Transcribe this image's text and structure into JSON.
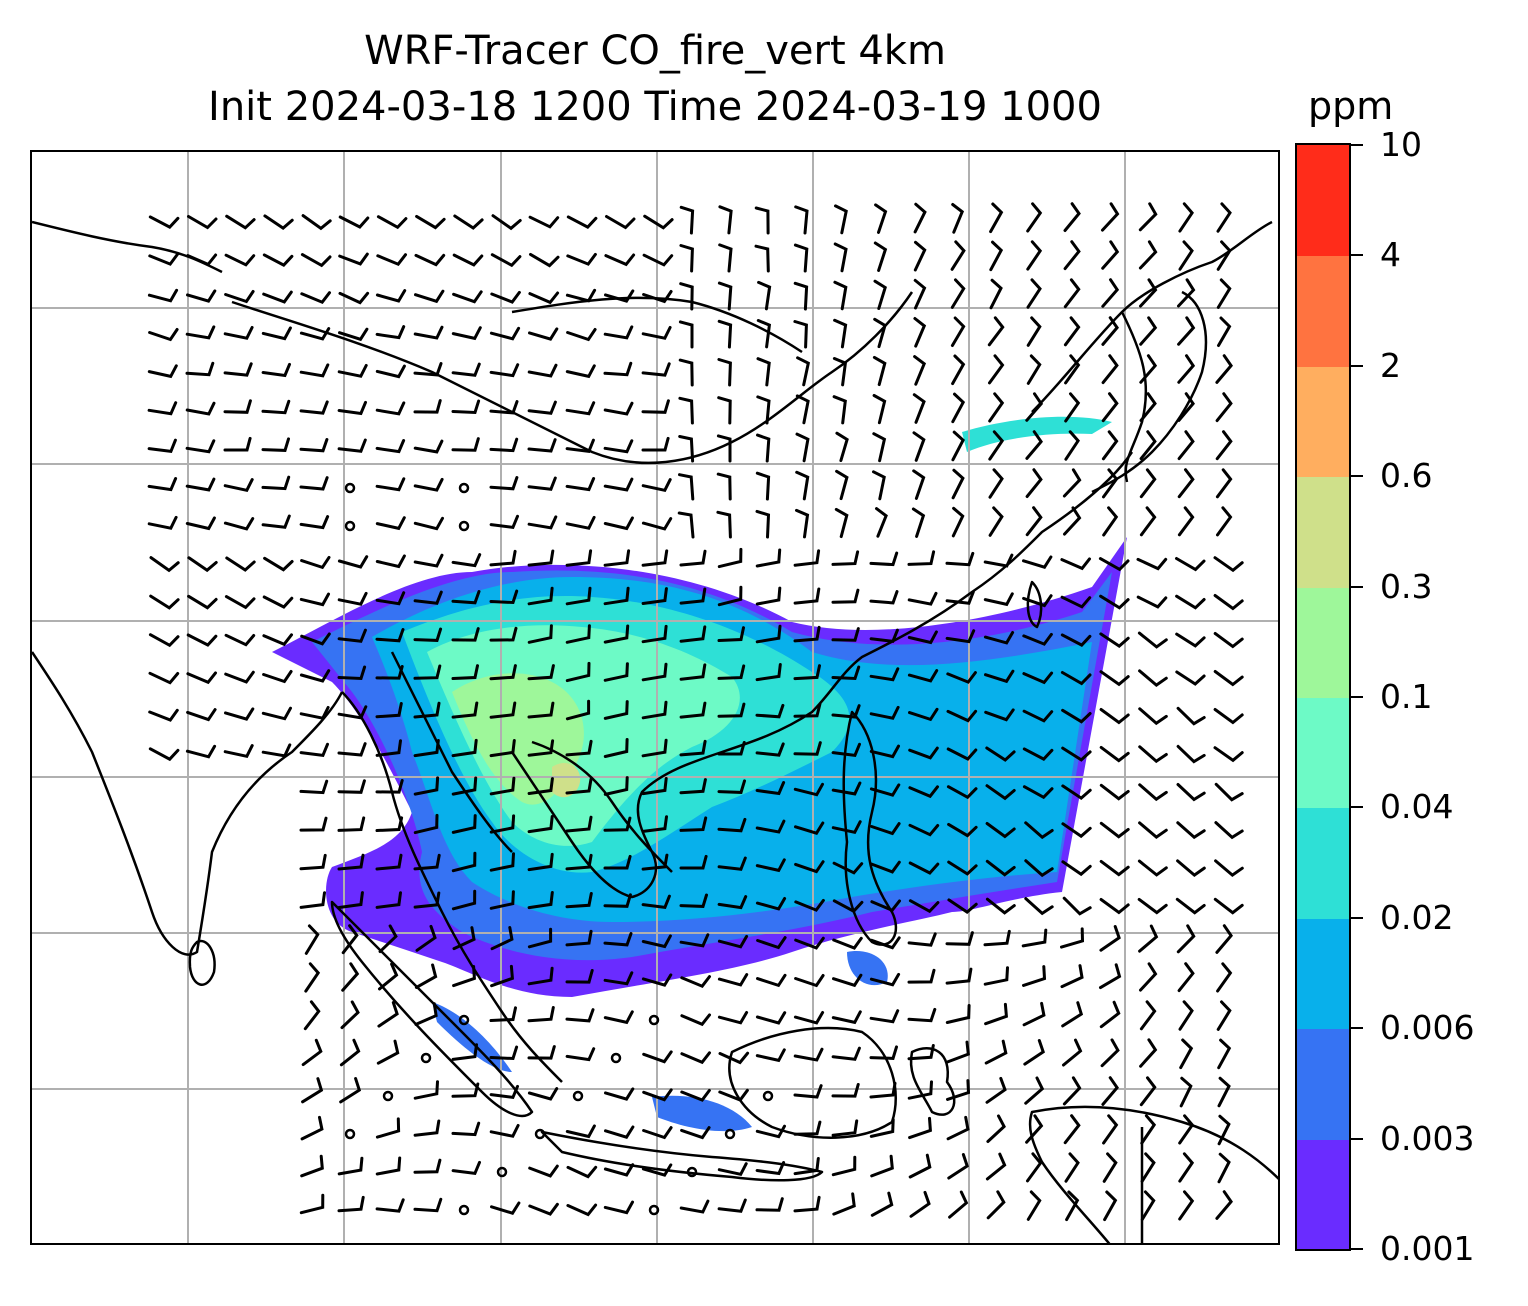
{
  "title": {
    "line1": "WRF-Tracer CO_fire_vert 4km",
    "line2": "Init 2024-03-18 1200 Time 2024-03-19 1000"
  },
  "map": {
    "field": "CO_fire_vert",
    "level": "4km",
    "gridlines": true,
    "coastline_color": "#000000",
    "gridline_color": "#b0b0b0",
    "wind_barbs": true
  },
  "colorbar": {
    "unit": "ppm",
    "ticks": [
      "0.001",
      "0.003",
      "0.006",
      "0.02",
      "0.04",
      "0.1",
      "0.3",
      "0.6",
      "2",
      "4",
      "10"
    ],
    "colors": [
      "#6a2cff",
      "#3673f3",
      "#08b0eb",
      "#2ee0d6",
      "#6dfac6",
      "#9ef79a",
      "#cfe08a",
      "#ffae5f",
      "#ff7340",
      "#ff2c1a"
    ]
  }
}
